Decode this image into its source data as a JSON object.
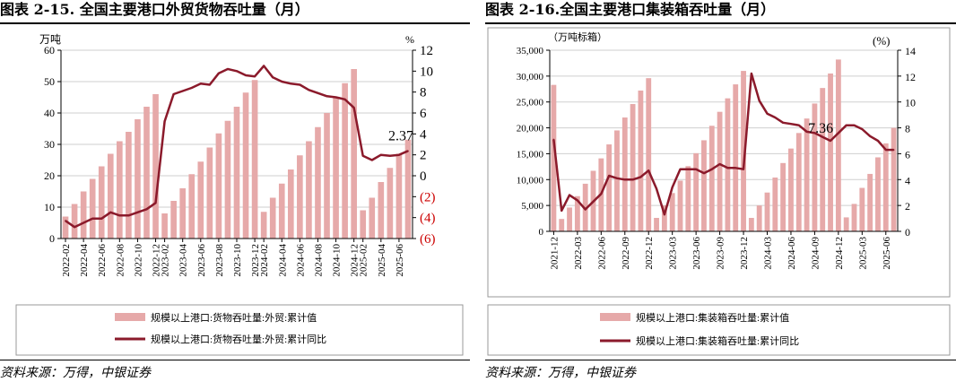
{
  "left": {
    "title": "图表 2-15. 全国主要港口外贸货物吞吐量（月）",
    "source": "资料来源：万得，中银证券",
    "unit_left": "万吨",
    "unit_right": "%",
    "annotation": "2.37",
    "colors": {
      "bar": "#e6a9a9",
      "line": "#8b1a2b",
      "neg_tick": "#cc0000"
    },
    "legend": [
      "规模以上港口:货物吞吐量:外贸:累计值",
      "规模以上港口:货物吞吐量:外贸:累计同比"
    ],
    "left_ticks": [
      "0",
      "10",
      "20",
      "30",
      "40",
      "50",
      "60"
    ],
    "right_ticks": [
      "(6)",
      "(4)",
      "(2)",
      "0",
      "2",
      "4",
      "6",
      "8",
      "10",
      "12"
    ],
    "x_tick_labels": [
      "2022-02",
      "2022-04",
      "2022-06",
      "2022-08",
      "2022-10",
      "2022-12",
      "2023-02",
      "2023-04",
      "2023-06",
      "2023-08",
      "2023-10",
      "2023-12",
      "2024-02",
      "2024-04",
      "2024-06",
      "2024-08",
      "2024-10",
      "2024-12",
      "2025-02",
      "2025-04",
      "2025-06"
    ]
  },
  "right": {
    "title": "图表 2-16.全国主要港口集装箱吞吐量（月）",
    "source": "资料来源：万得，中银证券",
    "unit_left": "（万吨标箱）",
    "unit_right": "(%)",
    "annotation": "7.36",
    "colors": {
      "bar": "#e6a9a9",
      "line": "#8b1a2b"
    },
    "legend": [
      "规模以上港口:集装箱吞吐量:累计值",
      "规模以上港口:集装箱吞吐量:累计同比"
    ],
    "left_ticks": [
      "0",
      "5,000",
      "10,000",
      "15,000",
      "20,000",
      "25,000",
      "30,000",
      "35,000"
    ],
    "right_ticks": [
      "0",
      "2",
      "4",
      "6",
      "8",
      "10",
      "12",
      "14"
    ],
    "x_tick_labels": [
      "2021-12",
      "2022-03",
      "2022-06",
      "2022-09",
      "2022-12",
      "2023-03",
      "2023-06",
      "2023-09",
      "2023-12",
      "2024-03",
      "2024-06",
      "2024-09",
      "2024-12",
      "2025-03",
      "2025-06"
    ]
  },
  "chart_data": [
    {
      "type": "bar+line",
      "x": [
        "2022-02",
        "2022-03",
        "2022-04",
        "2022-05",
        "2022-06",
        "2022-07",
        "2022-08",
        "2022-09",
        "2022-10",
        "2022-11",
        "2022-12",
        "2023-02",
        "2023-03",
        "2023-04",
        "2023-05",
        "2023-06",
        "2023-07",
        "2023-08",
        "2023-09",
        "2023-10",
        "2023-11",
        "2023-12",
        "2024-02",
        "2024-03",
        "2024-04",
        "2024-05",
        "2024-06",
        "2024-07",
        "2024-08",
        "2024-09",
        "2024-10",
        "2024-11",
        "2024-12",
        "2025-02",
        "2025-03",
        "2025-04",
        "2025-05",
        "2025-06",
        "2025-07"
      ],
      "series": [
        {
          "name": "规模以上港口:货物吞吐量:外贸:累计值",
          "axis": "left",
          "values": [
            7,
            11,
            15,
            19,
            23,
            27,
            31,
            34,
            38,
            42,
            46,
            8,
            12,
            16,
            20.5,
            24.5,
            29,
            33.5,
            37.5,
            42,
            46.5,
            50.5,
            8.5,
            13,
            17.5,
            22,
            26.5,
            31,
            35.5,
            40,
            45,
            49.5,
            54,
            9,
            13,
            18,
            22.5,
            27,
            31.5
          ]
        },
        {
          "name": "规模以上港口:货物吞吐量:外贸:累计同比",
          "axis": "right",
          "values": [
            -4.3,
            -4.9,
            -4.5,
            -4.1,
            -4.1,
            -3.5,
            -3.8,
            -3.8,
            -3.5,
            -3.2,
            -2.6,
            5.2,
            7.8,
            8.1,
            8.4,
            8.8,
            8.7,
            9.8,
            10.2,
            10.0,
            9.6,
            9.5,
            10.5,
            9.4,
            9.0,
            8.8,
            8.7,
            8.2,
            7.9,
            7.6,
            7.5,
            7.3,
            6.5,
            1.9,
            1.5,
            2.0,
            1.9,
            2.0,
            2.37
          ]
        }
      ],
      "xlabel": "",
      "ylabel": "万吨",
      "y2label": "%",
      "ylim": [
        0,
        60
      ],
      "y2lim": [
        -6,
        12
      ],
      "annotation": {
        "x": "2025-07",
        "text": "2.37"
      },
      "legend_position": "bottom"
    },
    {
      "type": "bar+line",
      "x": [
        "2021-12",
        "2022-01",
        "2022-02",
        "2022-03",
        "2022-04",
        "2022-05",
        "2022-06",
        "2022-07",
        "2022-08",
        "2022-09",
        "2022-10",
        "2022-11",
        "2022-12",
        "2023-01",
        "2023-02",
        "2023-03",
        "2023-04",
        "2023-05",
        "2023-06",
        "2023-07",
        "2023-08",
        "2023-09",
        "2023-10",
        "2023-11",
        "2023-12",
        "2024-01",
        "2024-02",
        "2024-03",
        "2024-04",
        "2024-05",
        "2024-06",
        "2024-07",
        "2024-08",
        "2024-09",
        "2024-10",
        "2024-11",
        "2024-12",
        "2025-01",
        "2025-02",
        "2025-03",
        "2025-04",
        "2025-05",
        "2025-06",
        "2025-07"
      ],
      "series": [
        {
          "name": "规模以上港口:集装箱吞吐量:累计值",
          "axis": "left",
          "values": [
            28300,
            2400,
            4600,
            6800,
            9200,
            11700,
            14100,
            16800,
            19500,
            22000,
            24600,
            27200,
            29600,
            2600,
            5000,
            7400,
            9800,
            12600,
            15100,
            17600,
            20400,
            23100,
            25700,
            28400,
            31000,
            2600,
            5000,
            7500,
            10400,
            13200,
            16000,
            19000,
            21800,
            24700,
            27700,
            30500,
            33200,
            2700,
            5300,
            8400,
            11100,
            14300,
            17000,
            20000
          ]
        },
        {
          "name": "规模以上港口:集装箱吞吐量:累计同比",
          "axis": "right",
          "values": [
            7.1,
            1.6,
            2.8,
            2.4,
            1.7,
            2.3,
            2.9,
            4.3,
            4.1,
            4.0,
            4.0,
            4.2,
            4.7,
            3.3,
            1.3,
            3.4,
            4.8,
            4.8,
            4.8,
            4.5,
            4.8,
            5.2,
            4.9,
            4.9,
            4.8,
            12.2,
            10.1,
            9.1,
            8.8,
            8.4,
            8.3,
            8.2,
            7.7,
            7.6,
            7.3,
            7.0,
            7.6,
            8.2,
            8.2,
            7.9,
            7.36,
            7.0,
            6.3,
            6.3
          ]
        }
      ],
      "xlabel": "",
      "ylabel": "（万吨标箱）",
      "y2label": "(%)",
      "ylim": [
        0,
        35000
      ],
      "y2lim": [
        0,
        14
      ],
      "annotation": {
        "x": "2025-04",
        "text": "7.36"
      },
      "legend_position": "bottom"
    }
  ]
}
